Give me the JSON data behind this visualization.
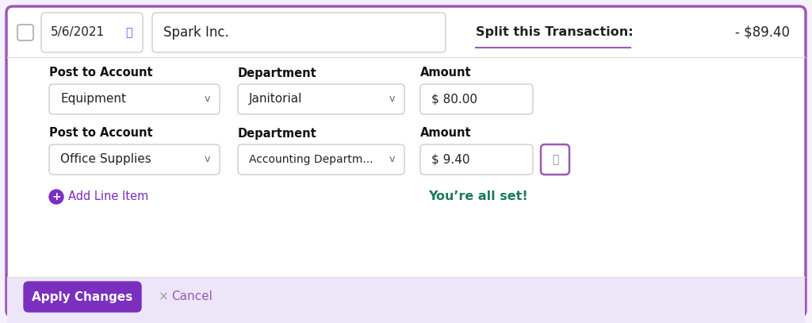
{
  "bg_color": "#ffffff",
  "outer_border_color": "#9b59b6",
  "figure_bg": "#f5f0fc",
  "header": {
    "date": "5/6/2021",
    "vendor": "Spark Inc.",
    "split_label": "Split this Transaction:",
    "amount": "- $89.40",
    "calendar_color": "#7c3aed"
  },
  "row1": {
    "post_label": "Post to Account",
    "dept_label": "Department",
    "amount_label": "Amount",
    "post_value": "Equipment",
    "dept_value": "Janitorial",
    "amount_value": "$ 80.00"
  },
  "row2": {
    "post_label": "Post to Account",
    "dept_label": "Department",
    "amount_label": "Amount",
    "post_value": "Office Supplies",
    "dept_value": "Accounting Departm...",
    "amount_value": "$ 9.40"
  },
  "add_line_item": "Add Line Item",
  "youre_all_set": "You’re all set!",
  "apply_btn_text": "Apply Changes",
  "apply_btn_bg": "#7b2fbf",
  "apply_btn_text_color": "#ffffff",
  "cancel_text": "Cancel",
  "cancel_color": "#9b59b6",
  "footer_bg": "#ece6f8",
  "purple_color": "#7b2fbf",
  "green_color": "#1a7a5e",
  "border_color": "#cccccc",
  "text_color": "#222222",
  "label_color": "#111111"
}
